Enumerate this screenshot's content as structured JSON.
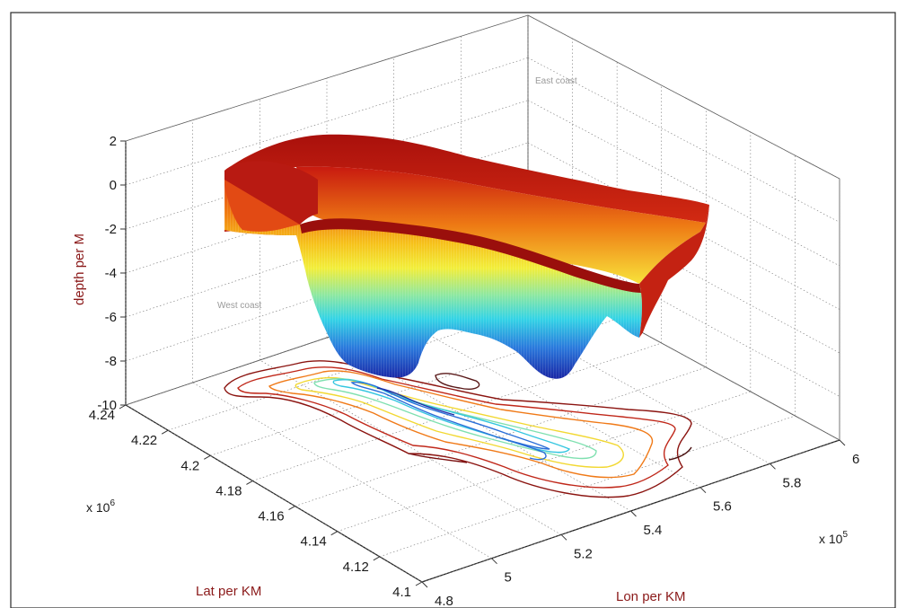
{
  "chart_data": {
    "type": "surface3d",
    "title": "",
    "xlabel": "Lon per KM",
    "ylabel": "Lat per KM",
    "zlabel": "depth per M",
    "x_ticks": [
      "4.8",
      "5",
      "5.2",
      "5.4",
      "5.6",
      "5.8",
      "6"
    ],
    "y_ticks": [
      "4.1",
      "4.12",
      "4.14",
      "4.16",
      "4.18",
      "4.2",
      "4.22",
      "4.24"
    ],
    "z_ticks": [
      "2",
      "0",
      "-2",
      "-4",
      "-6",
      "-8",
      "-10"
    ],
    "x_multiplier": "x 10",
    "x_multiplier_exp": "5",
    "y_multiplier": "x 10",
    "y_multiplier_exp": "6",
    "xlim": [
      4.8,
      6.0
    ],
    "ylim": [
      4.1,
      4.24
    ],
    "zlim": [
      -10,
      2
    ],
    "grid": true,
    "colormap": "jet",
    "projected_contours": true,
    "annotations": [
      {
        "text": "East coast"
      },
      {
        "text": "West coast"
      }
    ],
    "colors": {
      "axis_title": "#8b1a1a",
      "rim": "#b0120e",
      "deep": "#1a2fb8"
    }
  }
}
